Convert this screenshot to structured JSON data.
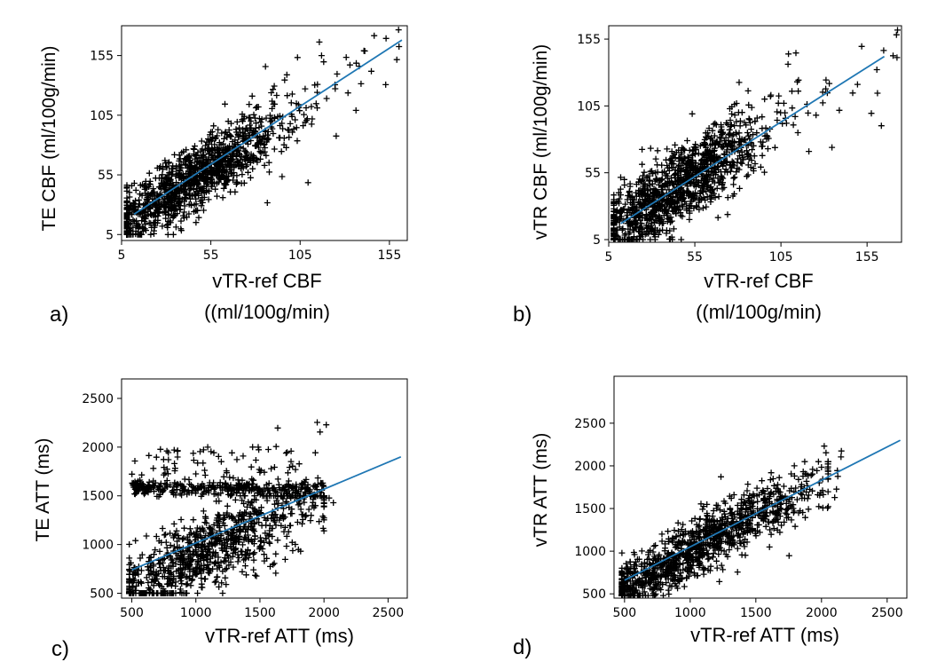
{
  "chart_data": [
    {
      "id": "a",
      "type": "scatter",
      "panel_label": "a)",
      "xlabel": "vTR-ref CBF",
      "xlabel_units": "((ml/100g/min)",
      "ylabel": "TE CBF (ml/100g/min)",
      "xlim": [
        5,
        165
      ],
      "ylim": [
        0,
        180
      ],
      "xticks": [
        5,
        55,
        105,
        155
      ],
      "yticks": [
        5,
        55,
        105,
        155
      ],
      "fit_line": {
        "x": [
          12,
          162
        ],
        "y": [
          22,
          168
        ]
      },
      "cloud": {
        "centroid": [
          45,
          52
        ],
        "slope": 0.97,
        "spread": 11,
        "x_range": [
          8,
          165
        ],
        "y_range": [
          5,
          178
        ],
        "n_points": 1200
      }
    },
    {
      "id": "b",
      "type": "scatter",
      "panel_label": "b)",
      "xlabel": "vTR-ref CBF",
      "xlabel_units": "((ml/100g/min)",
      "ylabel": "vTR CBF (ml/100g/min)",
      "xlim": [
        5,
        175
      ],
      "ylim": [
        3,
        165
      ],
      "xticks": [
        5,
        55,
        105,
        155
      ],
      "yticks": [
        5,
        55,
        105,
        155
      ],
      "fit_line": {
        "x": [
          12,
          165
        ],
        "y": [
          17,
          142
        ]
      },
      "cloud": {
        "centroid": [
          45,
          45
        ],
        "slope": 0.82,
        "spread": 11,
        "x_range": [
          8,
          170
        ],
        "y_range": [
          5,
          160
        ],
        "n_points": 1200
      }
    },
    {
      "id": "c",
      "type": "scatter",
      "panel_label": "c)",
      "xlabel": "vTR-ref ATT (ms)",
      "ylabel": "TE ATT (ms)",
      "xlim": [
        420,
        2650
      ],
      "ylim": [
        450,
        2700
      ],
      "xticks": [
        500,
        1000,
        1500,
        2000,
        2500
      ],
      "yticks": [
        500,
        1000,
        1500,
        2000,
        2500
      ],
      "fit_line": {
        "x": [
          500,
          2600
        ],
        "y": [
          740,
          1900
        ]
      },
      "cloud": {
        "centroid": [
          1050,
          900
        ],
        "slope": 0.7,
        "spread": 160,
        "x_range": [
          480,
          2000
        ],
        "y_range": [
          500,
          1500
        ],
        "n_points": 1000
      },
      "band": {
        "x_range": [
          500,
          2000
        ],
        "y_center": 1580,
        "spread": 40,
        "n_points": 320
      }
    },
    {
      "id": "d",
      "type": "scatter",
      "panel_label": "d)",
      "xlabel": "vTR-ref ATT (ms)",
      "ylabel": "vTR ATT (ms)",
      "xlim": [
        420,
        2650
      ],
      "ylim": [
        450,
        3050
      ],
      "xticks": [
        500,
        1000,
        1500,
        2000,
        2500
      ],
      "yticks": [
        500,
        1000,
        1500,
        2000,
        2500
      ],
      "fit_line": {
        "x": [
          500,
          2600
        ],
        "y": [
          660,
          2300
        ]
      },
      "cloud": {
        "centroid": [
          1000,
          1000
        ],
        "slope": 0.85,
        "spread": 130,
        "x_range": [
          480,
          2050
        ],
        "y_range": [
          480,
          2050
        ],
        "n_points": 1200
      }
    }
  ],
  "colors": {
    "fit_line": "#1f77b4",
    "marker": "#000000",
    "axis": "#000000"
  }
}
